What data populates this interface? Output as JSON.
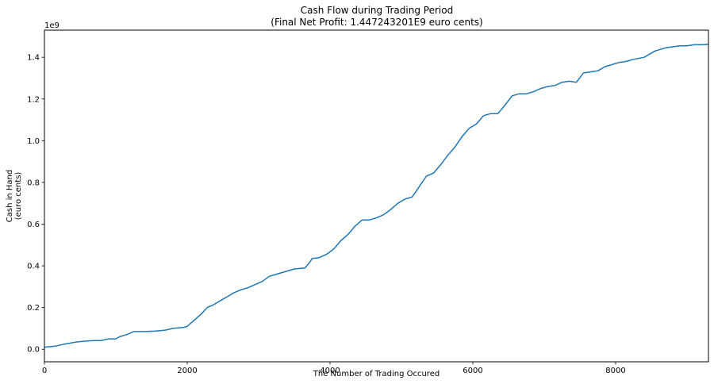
{
  "chart_data": {
    "type": "line",
    "title": "Cash Flow during Trading Period",
    "subtitle": "(Final Net Profit: 1.447243201E9 euro cents)",
    "xlabel": "The Number of Trading Occured",
    "ylabel_line1": "Cash in Hand",
    "ylabel_line2": "(euro cents)",
    "y_offset_label": "1e9",
    "xlim": [
      0,
      9300
    ],
    "ylim": [
      -0.06,
      1.53
    ],
    "xticks": [
      0,
      2000,
      4000,
      6000,
      8000
    ],
    "xtick_labels": [
      "0",
      "2000",
      "4000",
      "6000",
      "8000"
    ],
    "yticks": [
      0.0,
      0.2,
      0.4,
      0.6,
      0.8,
      1.0,
      1.2,
      1.4
    ],
    "ytick_labels": [
      "0.0",
      "0.2",
      "0.4",
      "0.6",
      "0.8",
      "1.0",
      "1.2",
      "1.4"
    ],
    "grid": false,
    "series": [
      {
        "color": "#1f77b4",
        "x": [
          0,
          150,
          280,
          450,
          600,
          700,
          800,
          900,
          1000,
          1050,
          1150,
          1250,
          1400,
          1550,
          1700,
          1800,
          1950,
          2000,
          2100,
          2200,
          2280,
          2350,
          2450,
          2550,
          2650,
          2750,
          2850,
          2950,
          3050,
          3150,
          3250,
          3400,
          3500,
          3650,
          3700,
          3750,
          3850,
          3950,
          4050,
          4150,
          4250,
          4350,
          4450,
          4550,
          4650,
          4750,
          4850,
          4950,
          5050,
          5150,
          5250,
          5350,
          5450,
          5550,
          5650,
          5750,
          5850,
          5950,
          6050,
          6150,
          6250,
          6350,
          6450,
          6550,
          6650,
          6750,
          6850,
          6950,
          7050,
          7150,
          7250,
          7350,
          7450,
          7550,
          7650,
          7750,
          7850,
          7950,
          8050,
          8150,
          8250,
          8400,
          8550,
          8700,
          8800,
          8900,
          9000,
          9100,
          9200,
          9300
        ],
        "y": [
          0.01,
          0.015,
          0.025,
          0.035,
          0.04,
          0.042,
          0.042,
          0.05,
          0.05,
          0.06,
          0.07,
          0.085,
          0.085,
          0.087,
          0.092,
          0.1,
          0.105,
          0.11,
          0.14,
          0.17,
          0.2,
          0.21,
          0.23,
          0.25,
          0.27,
          0.285,
          0.295,
          0.31,
          0.325,
          0.35,
          0.36,
          0.375,
          0.385,
          0.39,
          0.41,
          0.435,
          0.44,
          0.455,
          0.48,
          0.52,
          0.55,
          0.59,
          0.62,
          0.62,
          0.63,
          0.645,
          0.67,
          0.7,
          0.72,
          0.73,
          0.78,
          0.83,
          0.845,
          0.885,
          0.93,
          0.97,
          1.02,
          1.06,
          1.08,
          1.12,
          1.13,
          1.13,
          1.17,
          1.215,
          1.225,
          1.225,
          1.235,
          1.25,
          1.26,
          1.265,
          1.28,
          1.285,
          1.28,
          1.325,
          1.33,
          1.335,
          1.355,
          1.365,
          1.375,
          1.38,
          1.39,
          1.4,
          1.43,
          1.445,
          1.45,
          1.455,
          1.455,
          1.46,
          1.46,
          1.462
        ]
      }
    ]
  }
}
